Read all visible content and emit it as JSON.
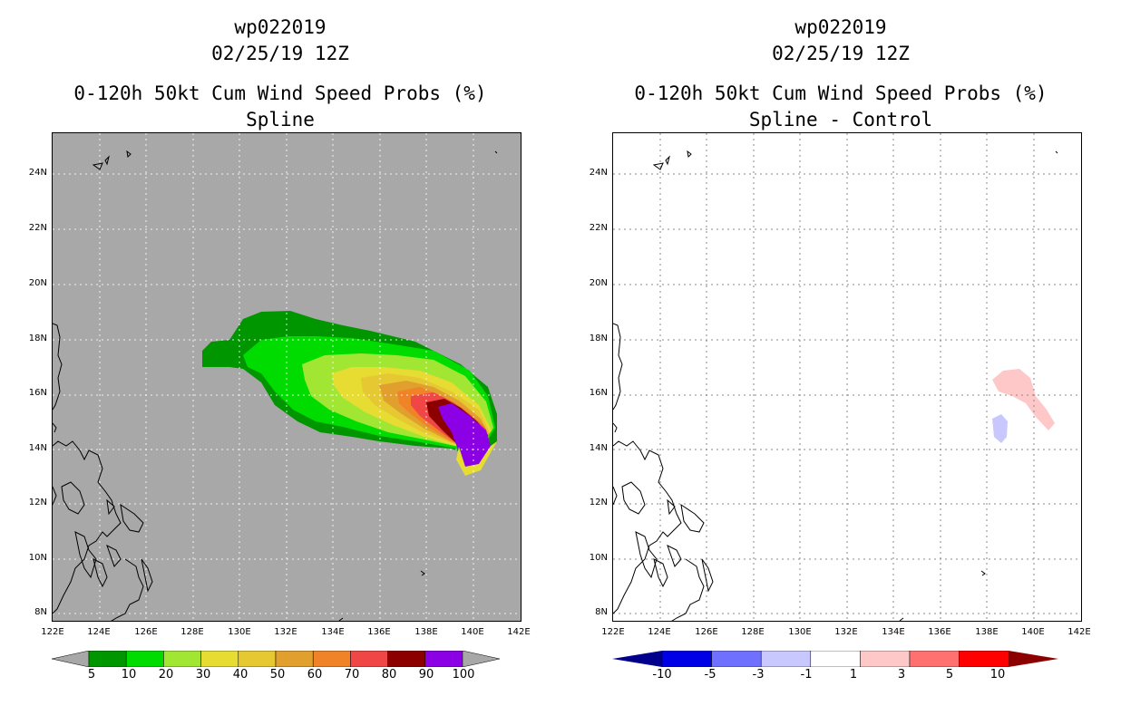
{
  "left": {
    "title1": "wp022019",
    "title2": "02/25/19 12Z",
    "title3": "0-120h 50kt Cum Wind Speed Probs (%)",
    "title4": "Spline",
    "colorbar_labels": [
      "5",
      "10",
      "20",
      "30",
      "40",
      "50",
      "60",
      "70",
      "80",
      "90",
      "100"
    ],
    "colorbar_colors": [
      "#009600",
      "#00dc00",
      "#a0e632",
      "#e6dc32",
      "#e6c832",
      "#e1a02d",
      "#f08228",
      "#f04646",
      "#8c0000",
      "#8c00e6"
    ]
  },
  "right": {
    "title1": "wp022019",
    "title2": "02/25/19 12Z",
    "title3": "0-120h 50kt Cum Wind Speed Probs (%)",
    "title4": "Spline - Control",
    "colorbar_labels": [
      "-10",
      "-5",
      "-3",
      "-1",
      "1",
      "3",
      "5",
      "10"
    ],
    "colorbar_colors": [
      "#0000e6",
      "#7070ff",
      "#c8c8ff",
      "#ffffff",
      "#ffc8c8",
      "#ff7070",
      "#ff0000"
    ],
    "colorbar_end_colors": [
      "#00008c",
      "#8c0000"
    ]
  },
  "lat_labels": [
    "24N",
    "22N",
    "20N",
    "18N",
    "16N",
    "14N",
    "12N",
    "10N",
    "8N"
  ],
  "lon_labels": [
    "122E",
    "124E",
    "126E",
    "128E",
    "130E",
    "132E",
    "134E",
    "136E",
    "138E",
    "140E",
    "142E"
  ]
}
